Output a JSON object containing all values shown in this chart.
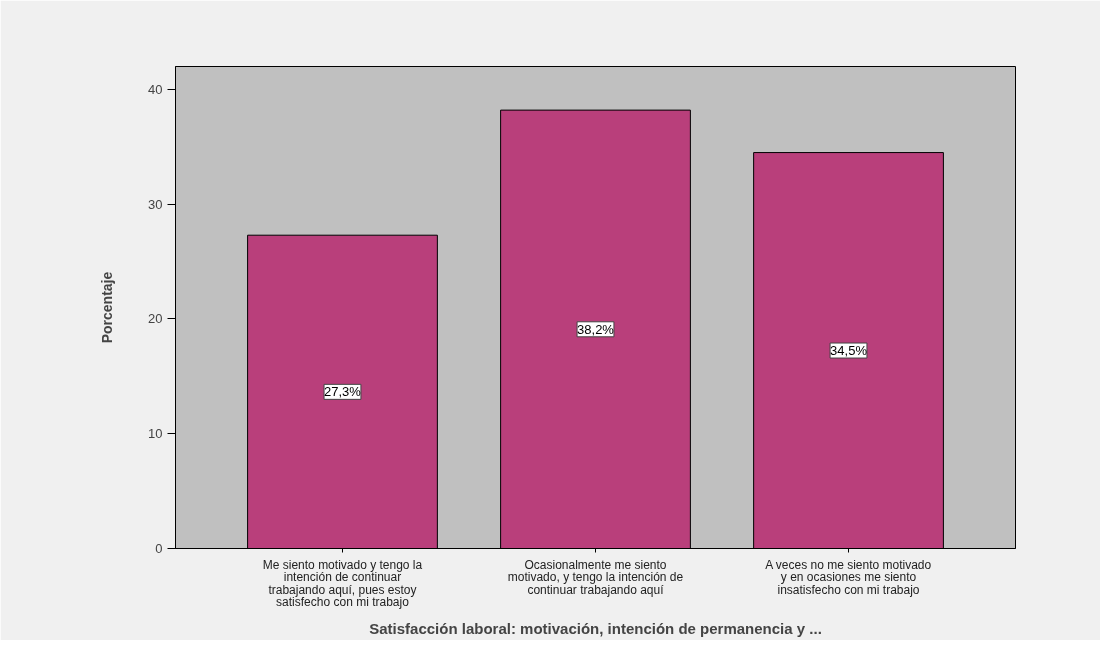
{
  "chart_data": {
    "type": "bar",
    "xlabel": "Satisfacción laboral: motivación, intención de permanencia y ...",
    "ylabel": "Porcentaje",
    "categories": [
      "Me siento motivado y tengo la\nintención de continuar\ntrabajando aquí, pues estoy\nsatisfecho con mi trabajo",
      "Ocasionalmente me siento\nmotivado, y tengo la intención de\ncontinuar trabajando aquí",
      "A veces no me siento motivado\ny en ocasiones me siento\ninsatisfecho con mi trabajo"
    ],
    "values": [
      27.3,
      38.2,
      34.5
    ],
    "color": "#b93f7b",
    "value_labels": [
      "27,3%",
      "38,2%",
      "34,5%"
    ],
    "ylim": [
      0,
      42
    ],
    "yticks": [
      0,
      10,
      20,
      30,
      40
    ]
  }
}
